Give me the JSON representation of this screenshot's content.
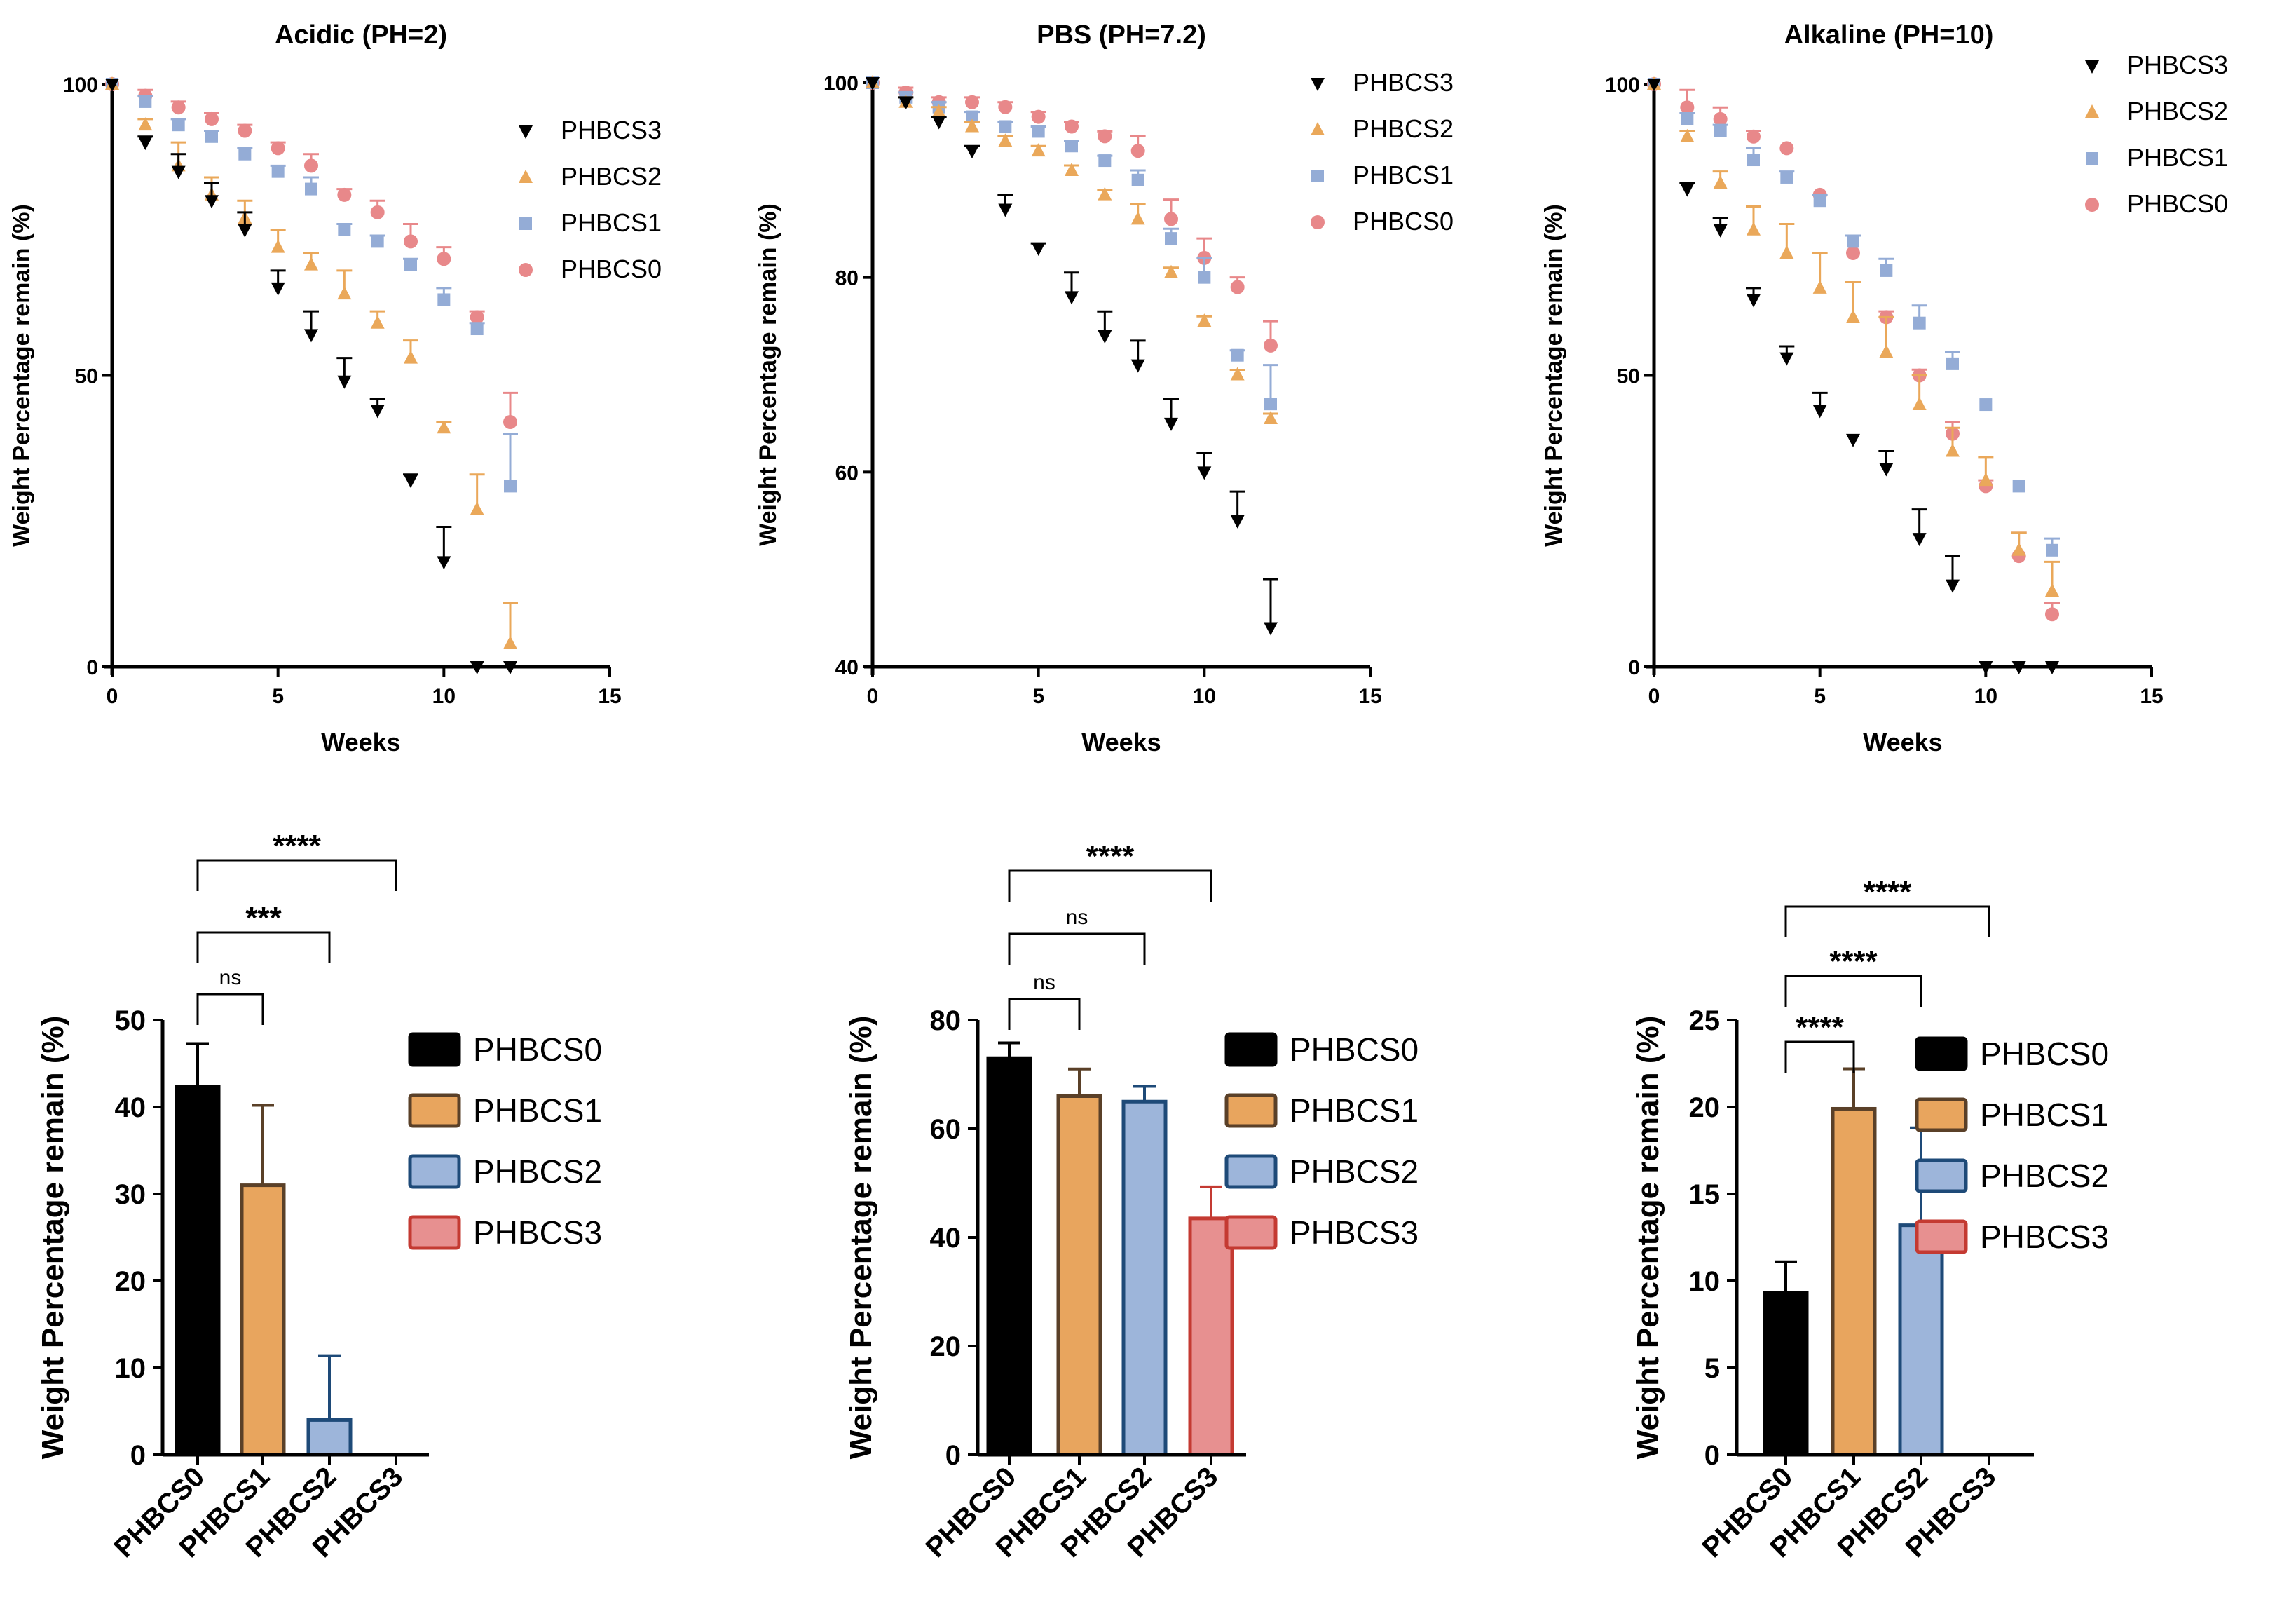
{
  "colors": {
    "PHBCS0": "#e8888a",
    "PHBCS1": "#94acd6",
    "PHBCS2": "#eaa85a",
    "PHBCS3": "#000000",
    "axis": "#000000",
    "bar_fill": {
      "PHBCS0": "#000000",
      "PHBCS1": "#e8a55e",
      "PHBCS2": "#9db5da",
      "PHBCS3": "#e79090"
    },
    "bar_stroke": {
      "PHBCS0": "#000000",
      "PHBCS1": "#5a4028",
      "PHBCS2": "#1e4a78",
      "PHBCS3": "#c43a32"
    }
  },
  "chart_data": [
    {
      "type": "scatter",
      "title": "Acidic (PH=2)",
      "xlabel": "Weeks",
      "ylabel": "Weight Percentage remain (%)",
      "xlim": [
        0,
        15
      ],
      "ylim": [
        0,
        100
      ],
      "xticks": [
        0,
        5,
        10,
        15
      ],
      "yticks": [
        0,
        50,
        100
      ],
      "legend": [
        "PHBCS3",
        "PHBCS2",
        "PHBCS1",
        "PHBCS0"
      ],
      "legend_position": "top-right",
      "x": [
        0,
        1,
        2,
        3,
        4,
        5,
        6,
        7,
        8,
        9,
        10,
        11,
        12
      ],
      "series": [
        {
          "name": "PHBCS3",
          "marker": "triangle-down",
          "values": [
            100,
            90,
            85,
            80,
            75,
            65,
            57,
            49,
            44,
            32,
            18,
            0,
            0
          ],
          "errors": [
            0,
            1,
            3,
            3,
            3,
            3,
            4,
            4,
            2,
            1,
            6,
            0,
            0
          ]
        },
        {
          "name": "PHBCS2",
          "marker": "triangle-up",
          "values": [
            100,
            93,
            86,
            81,
            77,
            72,
            69,
            64,
            59,
            53,
            41,
            27,
            4
          ],
          "errors": [
            0,
            1,
            4,
            3,
            3,
            3,
            2,
            4,
            2,
            3,
            1,
            6,
            7
          ]
        },
        {
          "name": "PHBCS1",
          "marker": "square",
          "values": [
            100,
            97,
            93,
            91,
            88,
            85,
            82,
            75,
            73,
            69,
            63,
            58,
            31
          ],
          "errors": [
            0,
            1,
            1,
            1,
            1,
            1,
            2,
            1,
            1,
            1,
            2,
            1,
            9
          ]
        },
        {
          "name": "PHBCS0",
          "marker": "circle",
          "values": [
            100,
            98,
            96,
            94,
            92,
            89,
            86,
            81,
            78,
            73,
            70,
            60,
            42
          ],
          "errors": [
            0,
            1,
            1,
            1,
            1,
            1,
            2,
            1,
            2,
            3,
            2,
            1,
            5
          ]
        }
      ]
    },
    {
      "type": "scatter",
      "title": "PBS (PH=7.2)",
      "xlabel": "Weeks",
      "ylabel": "Weight Percentage remain (%)",
      "xlim": [
        0,
        15
      ],
      "ylim": [
        40,
        100
      ],
      "xticks": [
        0,
        5,
        10,
        15
      ],
      "yticks": [
        40,
        60,
        80,
        100
      ],
      "legend": [
        "PHBCS3",
        "PHBCS2",
        "PHBCS1",
        "PHBCS0"
      ],
      "legend_position": "top-right",
      "x": [
        0,
        1,
        2,
        3,
        4,
        5,
        6,
        7,
        8,
        9,
        10,
        11,
        12
      ],
      "series": [
        {
          "name": "PHBCS3",
          "marker": "triangle-down",
          "values": [
            100,
            98,
            96,
            93,
            87,
            83,
            78,
            74,
            71,
            65,
            60,
            55,
            44
          ],
          "errors": [
            0,
            0.5,
            0.5,
            0.5,
            1.5,
            0.5,
            2.5,
            2.5,
            2.5,
            2.5,
            2,
            3,
            5
          ]
        },
        {
          "name": "PHBCS2",
          "marker": "triangle-up",
          "values": [
            100,
            98,
            97,
            95.5,
            94,
            93,
            91,
            88.5,
            86,
            80.5,
            75.5,
            70,
            65.5
          ],
          "errors": [
            0,
            0.5,
            0.5,
            0.5,
            0.5,
            0.5,
            0.5,
            0.5,
            1.5,
            0.5,
            0.5,
            0.5,
            0.5
          ]
        },
        {
          "name": "PHBCS1",
          "marker": "square",
          "values": [
            100,
            98.5,
            97.5,
            96.5,
            95.5,
            95,
            93.5,
            92,
            90,
            84,
            80,
            72,
            67
          ],
          "errors": [
            0,
            0.5,
            0.5,
            0.5,
            0.5,
            0.5,
            0.5,
            0.5,
            1,
            1,
            2,
            0.5,
            4
          ]
        },
        {
          "name": "PHBCS0",
          "marker": "circle",
          "values": [
            100,
            99,
            98,
            98,
            97.5,
            96.5,
            95.5,
            94.5,
            93,
            86,
            82,
            79,
            73
          ],
          "errors": [
            0,
            0.5,
            0.5,
            0.5,
            0.5,
            0.5,
            0.5,
            0.5,
            1.5,
            2,
            2,
            1,
            2.5
          ]
        }
      ]
    },
    {
      "type": "scatter",
      "title": "Alkaline (PH=10)",
      "xlabel": "Weeks",
      "ylabel": "Weight Percentage remain (%)",
      "xlim": [
        0,
        15
      ],
      "ylim": [
        0,
        100
      ],
      "xticks": [
        0,
        5,
        10,
        15
      ],
      "yticks": [
        0,
        50,
        100
      ],
      "legend": [
        "PHBCS3",
        "PHBCS2",
        "PHBCS1",
        "PHBCS0"
      ],
      "legend_position": "top-right",
      "x": [
        0,
        1,
        2,
        3,
        4,
        5,
        6,
        7,
        8,
        9,
        10,
        11,
        12
      ],
      "series": [
        {
          "name": "PHBCS3",
          "marker": "triangle-down",
          "values": [
            100,
            82,
            75,
            63,
            53,
            44,
            39,
            34,
            22,
            14,
            0,
            0,
            0
          ],
          "errors": [
            0,
            1,
            2,
            2,
            2,
            3,
            0,
            3,
            5,
            5,
            0,
            0,
            0
          ]
        },
        {
          "name": "PHBCS2",
          "marker": "triangle-up",
          "values": [
            100,
            91,
            83,
            75,
            71,
            65,
            60,
            54,
            45,
            37,
            32,
            20,
            13
          ],
          "errors": [
            0,
            1,
            2,
            4,
            5,
            6,
            6,
            6,
            5,
            4,
            4,
            3,
            5
          ]
        },
        {
          "name": "PHBCS1",
          "marker": "square",
          "values": [
            100,
            94,
            92,
            87,
            84,
            80,
            73,
            68,
            59,
            52,
            45,
            31,
            20
          ],
          "errors": [
            0,
            1,
            1,
            2,
            1,
            1,
            1,
            2,
            3,
            2,
            0,
            0,
            2
          ]
        },
        {
          "name": "PHBCS0",
          "marker": "circle",
          "values": [
            100,
            96,
            94,
            91,
            89,
            81,
            71,
            60,
            50,
            40,
            31,
            19,
            9
          ],
          "errors": [
            0,
            3,
            2,
            1,
            0,
            0,
            0,
            1,
            1,
            2,
            1,
            4,
            2
          ]
        }
      ]
    },
    {
      "type": "bar",
      "categories": [
        "PHBCS0",
        "PHBCS1",
        "PHBCS2",
        "PHBCS3"
      ],
      "values": [
        42.3,
        31,
        4,
        0
      ],
      "errors": [
        5,
        9.2,
        7.4,
        0
      ],
      "xlabel": "",
      "ylabel": "Weight Percentage remain (%)",
      "ylim": [
        0,
        50
      ],
      "yticks": [
        0,
        10,
        20,
        30,
        40,
        50
      ],
      "legend": [
        "PHBCS0",
        "PHBCS1",
        "PHBCS2",
        "PHBCS3"
      ],
      "legend_position": "right",
      "significance": [
        {
          "from": "PHBCS0",
          "to": "PHBCS1",
          "label": "ns"
        },
        {
          "from": "PHBCS0",
          "to": "PHBCS2",
          "label": "***"
        },
        {
          "from": "PHBCS0",
          "to": "PHBCS3",
          "label": "****"
        }
      ]
    },
    {
      "type": "bar",
      "categories": [
        "PHBCS0",
        "PHBCS1",
        "PHBCS2",
        "PHBCS3"
      ],
      "values": [
        73,
        66,
        65,
        43.5
      ],
      "errors": [
        2.8,
        5,
        2.8,
        5.8
      ],
      "xlabel": "",
      "ylabel": "Weight Percentage remain (%)",
      "ylim": [
        0,
        80
      ],
      "yticks": [
        0,
        20,
        40,
        60,
        80
      ],
      "legend": [
        "PHBCS0",
        "PHBCS1",
        "PHBCS2",
        "PHBCS3"
      ],
      "legend_position": "right",
      "significance": [
        {
          "from": "PHBCS0",
          "to": "PHBCS1",
          "label": "ns"
        },
        {
          "from": "PHBCS0",
          "to": "PHBCS2",
          "label": "ns"
        },
        {
          "from": "PHBCS0",
          "to": "PHBCS3",
          "label": "****"
        }
      ]
    },
    {
      "type": "bar",
      "categories": [
        "PHBCS0",
        "PHBCS1",
        "PHBCS2",
        "PHBCS3"
      ],
      "values": [
        9.3,
        19.9,
        13.2,
        0
      ],
      "errors": [
        1.8,
        2.3,
        5.6,
        0
      ],
      "xlabel": "",
      "ylabel": "Weight Percentage remain (%)",
      "ylim": [
        0,
        25
      ],
      "yticks": [
        0,
        5,
        10,
        15,
        20,
        25
      ],
      "legend": [
        "PHBCS0",
        "PHBCS1",
        "PHBCS2",
        "PHBCS3"
      ],
      "legend_position": "right",
      "significance": [
        {
          "from": "PHBCS0",
          "to": "PHBCS1",
          "label": "****"
        },
        {
          "from": "PHBCS0",
          "to": "PHBCS2",
          "label": "****"
        },
        {
          "from": "PHBCS0",
          "to": "PHBCS3",
          "label": "****"
        }
      ]
    }
  ]
}
